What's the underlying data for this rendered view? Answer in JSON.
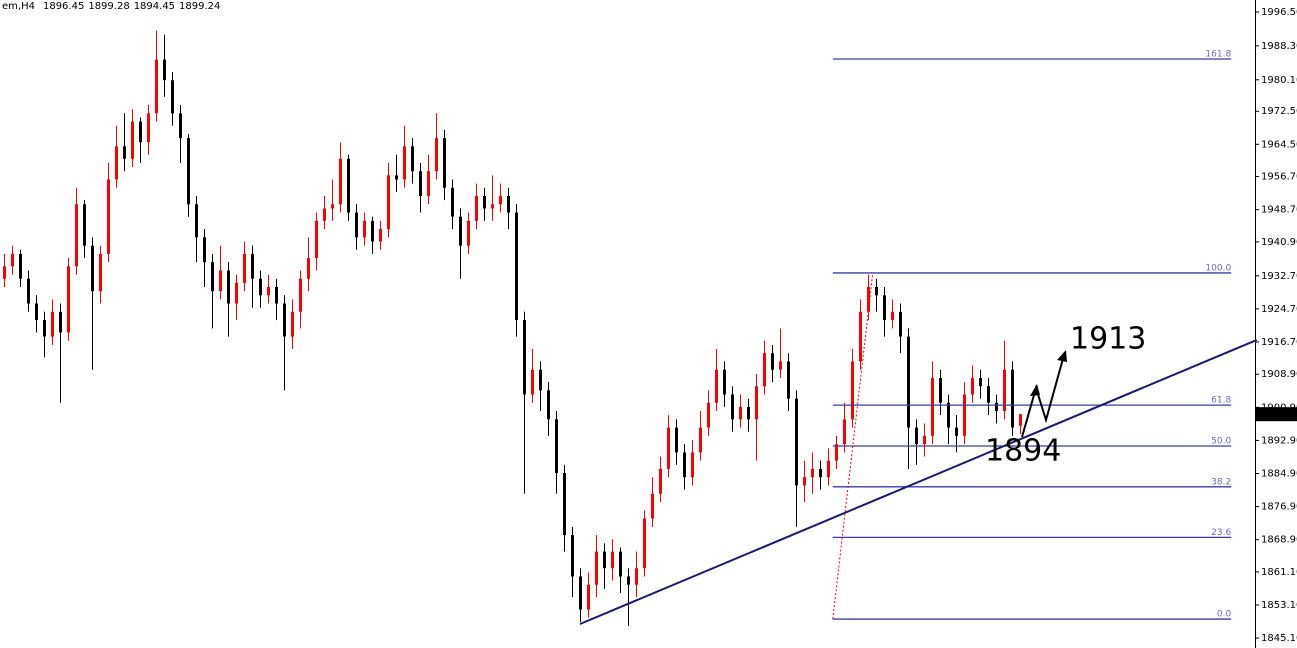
{
  "chart_data": {
    "type": "candlestick",
    "title": "em,H4",
    "up_color": "#ff0000",
    "down_color": "#000000",
    "ylim": [
      1842.7,
      1999.4
    ],
    "yticks": [
      {
        "value": 1996.5,
        "label": "1996.50"
      },
      {
        "value": 1988.3,
        "label": "1988.30"
      },
      {
        "value": 1980.1,
        "label": "1980.10"
      },
      {
        "value": 1972.5,
        "label": "1972.50"
      },
      {
        "value": 1964.5,
        "label": "1964.50"
      },
      {
        "value": 1956.7,
        "label": "1956.70"
      },
      {
        "value": 1948.7,
        "label": "1948.70"
      },
      {
        "value": 1940.9,
        "label": "1940.90"
      },
      {
        "value": 1932.7,
        "label": "1932.70"
      },
      {
        "value": 1924.7,
        "label": "1924.70"
      },
      {
        "value": 1916.7,
        "label": "1916.70"
      },
      {
        "value": 1908.9,
        "label": "1908.90"
      },
      {
        "value": 1900.9,
        "label": "1900.90"
      },
      {
        "value": 1892.9,
        "label": "1892.90"
      },
      {
        "value": 1884.9,
        "label": "1884.90"
      },
      {
        "value": 1876.9,
        "label": "1876.90"
      },
      {
        "value": 1868.9,
        "label": "1868.90"
      },
      {
        "value": 1861.1,
        "label": "1861.10"
      },
      {
        "value": 1853.1,
        "label": "1853.10"
      },
      {
        "value": 1845.1,
        "label": "1845.10"
      }
    ],
    "ohlc": [
      [
        1932,
        1938,
        1930,
        1935
      ],
      [
        1935,
        1940,
        1933,
        1938
      ],
      [
        1938,
        1939,
        1930,
        1932
      ],
      [
        1932,
        1934,
        1924,
        1926
      ],
      [
        1926,
        1928,
        1919,
        1922
      ],
      [
        1922,
        1924,
        1913,
        1918
      ],
      [
        1918,
        1927,
        1916,
        1924
      ],
      [
        1924,
        1926,
        1902,
        1919
      ],
      [
        1919,
        1937,
        1917,
        1935
      ],
      [
        1935,
        1954,
        1933,
        1950
      ],
      [
        1950,
        1951,
        1937,
        1940
      ],
      [
        1940,
        1942,
        1910,
        1929
      ],
      [
        1929,
        1940,
        1926,
        1938
      ],
      [
        1938,
        1960,
        1936,
        1956
      ],
      [
        1956,
        1969,
        1954,
        1964
      ],
      [
        1964,
        1972,
        1958,
        1961
      ],
      [
        1961,
        1973,
        1959,
        1970
      ],
      [
        1970,
        1971,
        1960,
        1965
      ],
      [
        1965,
        1974,
        1962,
        1972
      ],
      [
        1972,
        1992,
        1970,
        1985
      ],
      [
        1985,
        1991,
        1976,
        1980
      ],
      [
        1980,
        1982,
        1969,
        1972
      ],
      [
        1972,
        1974,
        1960,
        1966
      ],
      [
        1966,
        1967,
        1947,
        1950
      ],
      [
        1950,
        1952,
        1936,
        1942
      ],
      [
        1942,
        1944,
        1930,
        1936
      ],
      [
        1936,
        1938,
        1920,
        1929
      ],
      [
        1929,
        1940,
        1927,
        1934
      ],
      [
        1934,
        1936,
        1918,
        1926
      ],
      [
        1926,
        1933,
        1922,
        1931
      ],
      [
        1931,
        1941,
        1929,
        1938
      ],
      [
        1938,
        1940,
        1925,
        1932
      ],
      [
        1932,
        1934,
        1925,
        1928
      ],
      [
        1928,
        1933,
        1926,
        1930
      ],
      [
        1930,
        1932,
        1922,
        1926
      ],
      [
        1926,
        1928,
        1905,
        1918
      ],
      [
        1918,
        1927,
        1915,
        1924
      ],
      [
        1924,
        1934,
        1920,
        1932
      ],
      [
        1932,
        1942,
        1929,
        1937
      ],
      [
        1937,
        1948,
        1934,
        1946
      ],
      [
        1946,
        1952,
        1944,
        1949
      ],
      [
        1949,
        1956,
        1946,
        1950
      ],
      [
        1950,
        1965,
        1948,
        1961
      ],
      [
        1961,
        1962,
        1946,
        1948
      ],
      [
        1948,
        1950,
        1939,
        1942
      ],
      [
        1942,
        1948,
        1940,
        1946
      ],
      [
        1946,
        1947,
        1938,
        1941
      ],
      [
        1941,
        1946,
        1939,
        1944
      ],
      [
        1944,
        1960,
        1942,
        1957
      ],
      [
        1957,
        1962,
        1953,
        1956
      ],
      [
        1956,
        1969,
        1954,
        1964
      ],
      [
        1964,
        1966,
        1955,
        1958
      ],
      [
        1958,
        1960,
        1948,
        1952
      ],
      [
        1952,
        1962,
        1950,
        1958
      ],
      [
        1958,
        1972,
        1956,
        1966
      ],
      [
        1966,
        1968,
        1951,
        1954
      ],
      [
        1954,
        1956,
        1944,
        1947
      ],
      [
        1947,
        1949,
        1932,
        1940
      ],
      [
        1940,
        1948,
        1938,
        1946
      ],
      [
        1946,
        1955,
        1944,
        1952
      ],
      [
        1952,
        1954,
        1946,
        1949
      ],
      [
        1949,
        1957,
        1946,
        1950
      ],
      [
        1950,
        1955,
        1948,
        1952
      ],
      [
        1952,
        1954,
        1944,
        1948
      ],
      [
        1948,
        1950,
        1918,
        1922
      ],
      [
        1922,
        1924,
        1880,
        1904
      ],
      [
        1904,
        1915,
        1902,
        1910
      ],
      [
        1910,
        1912,
        1900,
        1905
      ],
      [
        1905,
        1907,
        1894,
        1898
      ],
      [
        1898,
        1900,
        1880,
        1885
      ],
      [
        1885,
        1887,
        1866,
        1870
      ],
      [
        1870,
        1872,
        1855,
        1860
      ],
      [
        1860,
        1862,
        1849,
        1852
      ],
      [
        1852,
        1861,
        1850,
        1858
      ],
      [
        1858,
        1870,
        1855,
        1866
      ],
      [
        1866,
        1868,
        1857,
        1862
      ],
      [
        1862,
        1869,
        1859,
        1866
      ],
      [
        1866,
        1867,
        1856,
        1860
      ],
      [
        1860,
        1862,
        1848,
        1858
      ],
      [
        1858,
        1866,
        1855,
        1862
      ],
      [
        1862,
        1876,
        1860,
        1874
      ],
      [
        1874,
        1884,
        1872,
        1880
      ],
      [
        1880,
        1889,
        1878,
        1886
      ],
      [
        1886,
        1899,
        1884,
        1896
      ],
      [
        1896,
        1898,
        1887,
        1890
      ],
      [
        1890,
        1892,
        1881,
        1884
      ],
      [
        1884,
        1893,
        1882,
        1890
      ],
      [
        1890,
        1900,
        1888,
        1896
      ],
      [
        1896,
        1905,
        1894,
        1902
      ],
      [
        1902,
        1915,
        1900,
        1910
      ],
      [
        1910,
        1912,
        1901,
        1904
      ],
      [
        1904,
        1906,
        1895,
        1898
      ],
      [
        1898,
        1904,
        1896,
        1901
      ],
      [
        1901,
        1903,
        1895,
        1898
      ],
      [
        1898,
        1909,
        1888,
        1906
      ],
      [
        1906,
        1917,
        1904,
        1914
      ],
      [
        1914,
        1916,
        1907,
        1910
      ],
      [
        1910,
        1920,
        1908,
        1912
      ],
      [
        1912,
        1914,
        1900,
        1903
      ],
      [
        1903,
        1905,
        1872,
        1882
      ],
      [
        1882,
        1888,
        1878,
        1884
      ],
      [
        1884,
        1890,
        1880,
        1886
      ],
      [
        1886,
        1888,
        1881,
        1884
      ],
      [
        1884,
        1891,
        1882,
        1888
      ],
      [
        1888,
        1894,
        1886,
        1892
      ],
      [
        1892,
        1902,
        1890,
        1898
      ],
      [
        1898,
        1915,
        1896,
        1912
      ],
      [
        1912,
        1927,
        1910,
        1924
      ],
      [
        1924,
        1933,
        1922,
        1930
      ],
      [
        1930,
        1932,
        1924,
        1928
      ],
      [
        1928,
        1930,
        1918,
        1922
      ],
      [
        1922,
        1927,
        1920,
        1924
      ],
      [
        1924,
        1926,
        1914,
        1918
      ],
      [
        1918,
        1920,
        1886,
        1896
      ],
      [
        1896,
        1898,
        1887,
        1892
      ],
      [
        1892,
        1897,
        1889,
        1894
      ],
      [
        1894,
        1912,
        1892,
        1908
      ],
      [
        1908,
        1910,
        1899,
        1902
      ],
      [
        1902,
        1904,
        1892,
        1896
      ],
      [
        1896,
        1899,
        1890,
        1894
      ],
      [
        1894,
        1907,
        1892,
        1904
      ],
      [
        1904,
        1911,
        1902,
        1908
      ],
      [
        1908,
        1910,
        1903,
        1906
      ],
      [
        1906,
        1908,
        1899,
        1902
      ],
      [
        1902,
        1904,
        1897,
        1900
      ],
      [
        1900,
        1917,
        1898,
        1910
      ],
      [
        1910,
        1912,
        1894,
        1896
      ],
      [
        1896.45,
        1899.28,
        1894.45,
        1899.24
      ]
    ],
    "trendline": {
      "from": [
        72,
        1848.5
      ],
      "to": [
        156.6,
        1917.2
      ],
      "color": "#1a1a6e"
    },
    "fibonacci": {
      "from": [
        103.6,
        1849.7
      ],
      "to": [
        108.6,
        1933.4
      ],
      "extend_to": 153.4,
      "color": "#3c3ca8",
      "levels": [
        161.8,
        {
          "value": 100,
          "label": "100.0"
        },
        61.8,
        {
          "value": 50,
          "label": "50.0"
        },
        38.2,
        23.6,
        {
          "value": 0,
          "label": "0.0"
        }
      ]
    },
    "annotations": [
      {
        "text": "1913",
        "color": "#7a0000"
      },
      {
        "text": "1894",
        "color": "#7a0000"
      }
    ]
  }
}
